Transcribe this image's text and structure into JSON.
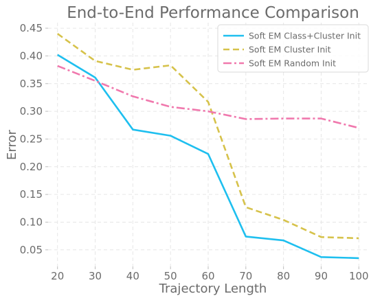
{
  "chart_data": {
    "type": "line",
    "title": "End-to-End Performance Comparison",
    "xlabel": "Trajectory Length",
    "ylabel": "Error",
    "x": [
      20,
      30,
      40,
      50,
      60,
      70,
      80,
      90,
      100
    ],
    "xlim": [
      17.5,
      102.5
    ],
    "ylim": [
      0.02,
      0.46
    ],
    "xticks": [
      "20",
      "30",
      "40",
      "50",
      "60",
      "70",
      "80",
      "90",
      "100"
    ],
    "yticks": [
      "0.05",
      "0.10",
      "0.15",
      "0.20",
      "0.25",
      "0.30",
      "0.35",
      "0.40",
      "0.45"
    ],
    "grid": true,
    "legend_position": "top-right",
    "series": [
      {
        "name": "Soft EM Class+Cluster Init",
        "values": [
          0.402,
          0.361,
          0.267,
          0.256,
          0.223,
          0.074,
          0.067,
          0.037,
          0.035
        ],
        "color": "#1ebfef",
        "style": "solid"
      },
      {
        "name": "Soft EM Cluster Init",
        "values": [
          0.44,
          0.391,
          0.375,
          0.383,
          0.317,
          0.127,
          0.104,
          0.073,
          0.071
        ],
        "color": "#d6c24a",
        "style": "dashed"
      },
      {
        "name": "Soft EM Random Init",
        "values": [
          0.382,
          0.355,
          0.327,
          0.308,
          0.3,
          0.286,
          0.287,
          0.287,
          0.27
        ],
        "color": "#f078ad",
        "style": "dashdot"
      }
    ]
  }
}
